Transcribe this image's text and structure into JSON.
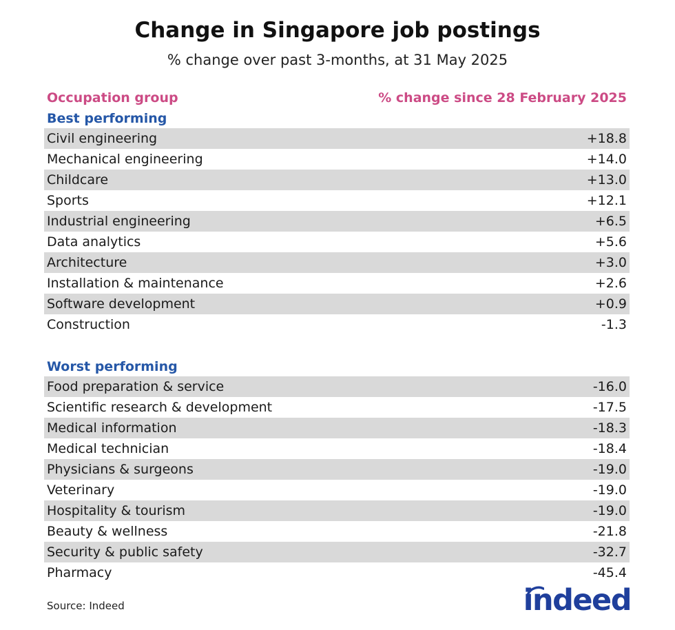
{
  "title": "Change in Singapore job postings",
  "subtitle": "% change over past 3-months, at 31 May 2025",
  "chart_data": {
    "type": "table",
    "columns": [
      "Occupation group",
      "% change since 28 February 2025"
    ],
    "sections": [
      {
        "name": "Best performing",
        "rows": [
          {
            "label": "Civil engineering",
            "value": "+18.8"
          },
          {
            "label": "Mechanical engineering",
            "value": "+14.0"
          },
          {
            "label": "Childcare",
            "value": "+13.0"
          },
          {
            "label": "Sports",
            "value": "+12.1"
          },
          {
            "label": "Industrial engineering",
            "value": "+6.5"
          },
          {
            "label": "Data analytics",
            "value": "+5.6"
          },
          {
            "label": "Architecture",
            "value": "+3.0"
          },
          {
            "label": "Installation & maintenance",
            "value": "+2.6"
          },
          {
            "label": "Software development",
            "value": "+0.9"
          },
          {
            "label": "Construction",
            "value": "-1.3"
          }
        ]
      },
      {
        "name": "Worst performing",
        "rows": [
          {
            "label": "Food preparation & service",
            "value": "-16.0"
          },
          {
            "label": "Scientific research & development",
            "value": "-17.5"
          },
          {
            "label": "Medical information",
            "value": "-18.3"
          },
          {
            "label": "Medical technician",
            "value": "-18.4"
          },
          {
            "label": "Physicians & surgeons",
            "value": "-19.0"
          },
          {
            "label": "Veterinary",
            "value": "-19.0"
          },
          {
            "label": "Hospitality & tourism",
            "value": "-19.0"
          },
          {
            "label": "Beauty & wellness",
            "value": "-21.8"
          },
          {
            "label": "Security & public safety",
            "value": "-32.7"
          },
          {
            "label": "Pharmacy",
            "value": "-45.4"
          }
        ]
      }
    ]
  },
  "source": "Source: Indeed",
  "logo_text": "indeed",
  "colors": {
    "header": "#cc4b85",
    "section": "#2557a7",
    "shade": "#d9d9d9",
    "logo": "#1f3f9c"
  }
}
